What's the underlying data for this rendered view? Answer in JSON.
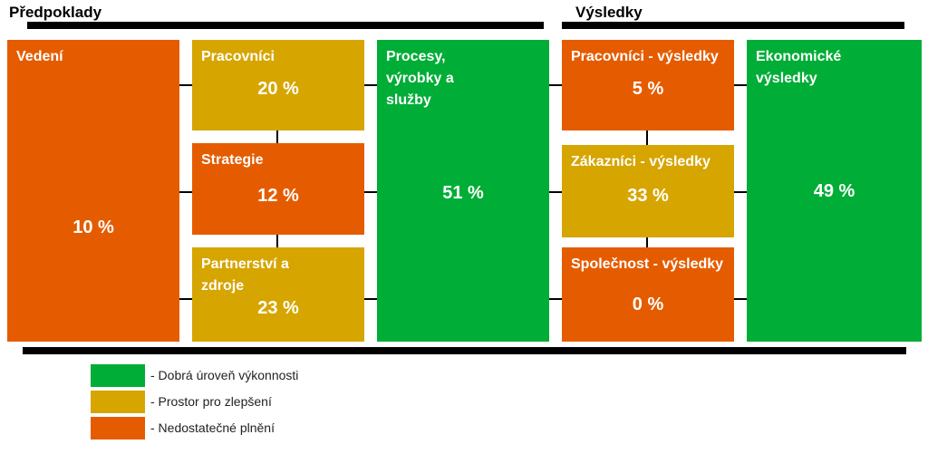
{
  "headers": {
    "left": "Předpoklady",
    "right": "Výsledky"
  },
  "colors": {
    "good": "#00ad36",
    "improve": "#d6a500",
    "poor": "#e55c00"
  },
  "boxes": {
    "vedeni": {
      "label": "Vedení",
      "value": "10 %"
    },
    "pracovnici": {
      "label": "Pracovníci",
      "value": "20 %"
    },
    "strategie": {
      "label": "Strategie",
      "value": "12 %"
    },
    "partnerstvi": {
      "label": "Partnerství a zdroje",
      "value": "23 %"
    },
    "procesy": {
      "label": "Procesy, výrobky a služby",
      "value": "51 %"
    },
    "pracovnici_vysledky": {
      "label": "Pracovníci - výsledky",
      "value": "5 %"
    },
    "zakaznici_vysledky": {
      "label": "Zákazníci - výsledky",
      "value": "33 %"
    },
    "spolecnost_vysledky": {
      "label": "Společnost - výsledky",
      "value": "0 %"
    },
    "ekonomicke": {
      "label": "Ekonomické výsledky",
      "value": "49 %"
    }
  },
  "legend": [
    {
      "label": "- Dobrá úroveň výkonnosti",
      "color": "#00ad36"
    },
    {
      "label": "- Prostor pro zlepšení",
      "color": "#d6a500"
    },
    {
      "label": "- Nedostatečné plnění",
      "color": "#e55c00"
    }
  ]
}
